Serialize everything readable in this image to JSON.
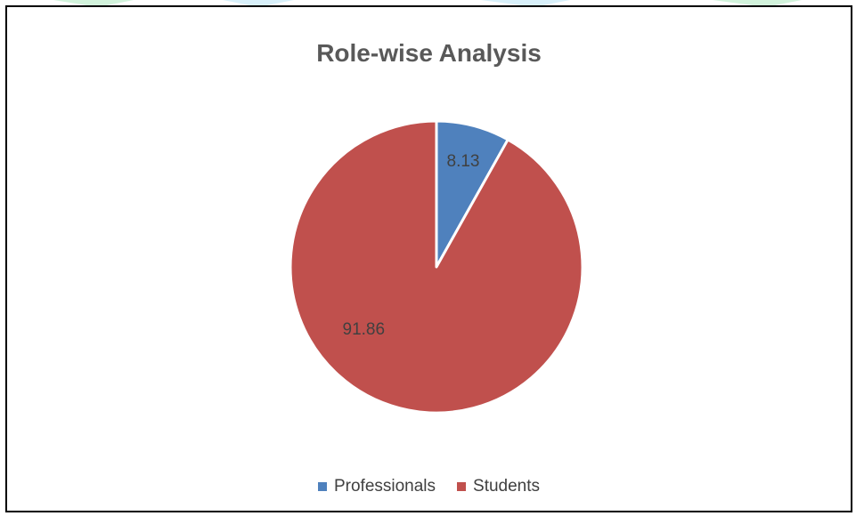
{
  "chart_data": {
    "type": "pie",
    "title": "Role-wise Analysis",
    "categories": [
      "Professionals",
      "Students"
    ],
    "values": [
      8.13,
      91.86
    ],
    "value_labels": [
      "8.13",
      "91.86"
    ],
    "colors": [
      "#4F81BD",
      "#C0504D"
    ],
    "legend_position": "bottom",
    "start_angle": "top, clockwise"
  }
}
